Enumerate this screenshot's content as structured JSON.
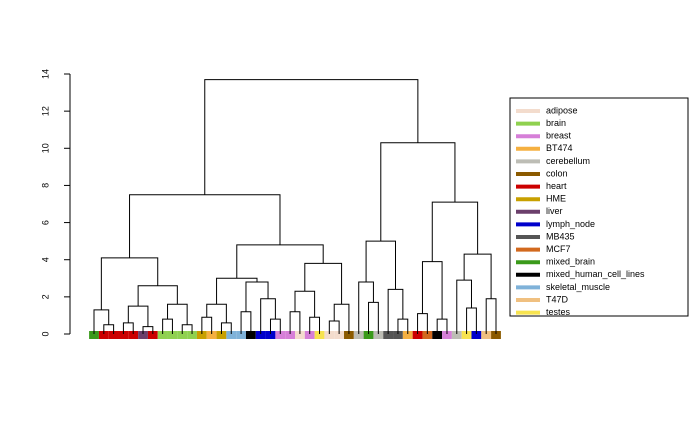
{
  "chart_data": {
    "type": "dendrogram",
    "ylim": [
      0,
      14
    ],
    "yticks": [
      0,
      2,
      4,
      6,
      8,
      10,
      12,
      14
    ],
    "series": [
      {
        "name": "adipose",
        "color": "#f3dccd"
      },
      {
        "name": "brain",
        "color": "#8fd14f"
      },
      {
        "name": "breast",
        "color": "#d67fd8"
      },
      {
        "name": "BT474",
        "color": "#f5b041"
      },
      {
        "name": "cerebellum",
        "color": "#bdbdb5"
      },
      {
        "name": "colon",
        "color": "#8b5a00"
      },
      {
        "name": "heart",
        "color": "#cc0000"
      },
      {
        "name": "HME",
        "color": "#c8a000"
      },
      {
        "name": "liver",
        "color": "#6b3f6b"
      },
      {
        "name": "lymph_node",
        "color": "#0000cc"
      },
      {
        "name": "MB435",
        "color": "#555555"
      },
      {
        "name": "MCF7",
        "color": "#d2691e"
      },
      {
        "name": "mixed_brain",
        "color": "#3a9a1a"
      },
      {
        "name": "mixed_human_cell_lines",
        "color": "#000000"
      },
      {
        "name": "skeletal_muscle",
        "color": "#7fb2d9"
      },
      {
        "name": "T47D",
        "color": "#f0c080"
      },
      {
        "name": "testes",
        "color": "#f7e34f"
      }
    ],
    "tree": {
      "h": 13.7,
      "c": [
        {
          "h": 7.5,
          "c": [
            {
              "h": 4.1,
              "c": [
                {
                  "h": 1.3,
                  "c": [
                    {
                      "group": "mixed_brain"
                    },
                    {
                      "h": 0.5,
                      "c": [
                        {
                          "group": "heart"
                        },
                        {
                          "group": "heart"
                        }
                      ]
                    }
                  ]
                },
                {
                  "h": 2.6,
                  "c": [
                    {
                      "h": 1.5,
                      "c": [
                        {
                          "h": 0.6,
                          "c": [
                            {
                              "group": "heart"
                            },
                            {
                              "group": "heart"
                            }
                          ]
                        },
                        {
                          "h": 0.4,
                          "c": [
                            {
                              "group": "liver"
                            },
                            {
                              "group": "heart"
                            }
                          ]
                        }
                      ]
                    },
                    {
                      "h": 1.6,
                      "c": [
                        {
                          "h": 0.8,
                          "c": [
                            {
                              "group": "brain"
                            },
                            {
                              "group": "brain"
                            }
                          ]
                        },
                        {
                          "h": 0.5,
                          "c": [
                            {
                              "group": "brain"
                            },
                            {
                              "group": "brain"
                            }
                          ]
                        }
                      ]
                    }
                  ]
                }
              ]
            },
            {
              "h": 4.8,
              "c": [
                {
                  "h": 3.0,
                  "c": [
                    {
                      "h": 1.6,
                      "c": [
                        {
                          "h": 0.9,
                          "c": [
                            {
                              "group": "HME"
                            },
                            {
                              "group": "BT474"
                            }
                          ]
                        },
                        {
                          "h": 0.6,
                          "c": [
                            {
                              "group": "HME"
                            },
                            {
                              "group": "skeletal_muscle"
                            }
                          ]
                        }
                      ]
                    },
                    {
                      "h": 2.8,
                      "c": [
                        {
                          "h": 1.2,
                          "c": [
                            {
                              "group": "skeletal_muscle"
                            },
                            {
                              "group": "mixed_human_cell_lines"
                            }
                          ]
                        },
                        {
                          "h": 1.9,
                          "c": [
                            {
                              "group": "lymph_node"
                            },
                            {
                              "h": 0.8,
                              "c": [
                                {
                                  "group": "lymph_node"
                                },
                                {
                                  "group": "breast"
                                }
                              ]
                            }
                          ]
                        }
                      ]
                    }
                  ]
                },
                {
                  "h": 3.8,
                  "c": [
                    {
                      "h": 2.3,
                      "c": [
                        {
                          "h": 1.2,
                          "c": [
                            {
                              "group": "breast"
                            },
                            {
                              "group": "adipose"
                            }
                          ]
                        },
                        {
                          "h": 0.9,
                          "c": [
                            {
                              "group": "breast"
                            },
                            {
                              "group": "testes"
                            }
                          ]
                        }
                      ]
                    },
                    {
                      "h": 1.6,
                      "c": [
                        {
                          "h": 0.7,
                          "c": [
                            {
                              "group": "adipose"
                            },
                            {
                              "group": "adipose"
                            }
                          ]
                        },
                        {
                          "group": "colon"
                        }
                      ]
                    }
                  ]
                }
              ]
            }
          ]
        },
        {
          "h": 10.3,
          "c": [
            {
              "h": 5.0,
              "c": [
                {
                  "h": 2.8,
                  "c": [
                    {
                      "group": "cerebellum"
                    },
                    {
                      "h": 1.7,
                      "c": [
                        {
                          "group": "mixed_brain"
                        },
                        {
                          "group": "cerebellum"
                        }
                      ]
                    }
                  ]
                },
                {
                  "h": 2.4,
                  "c": [
                    {
                      "group": "MB435"
                    },
                    {
                      "h": 0.8,
                      "c": [
                        {
                          "group": "MB435"
                        },
                        {
                          "group": "BT474"
                        }
                      ]
                    }
                  ]
                }
              ]
            },
            {
              "h": 7.1,
              "c": [
                {
                  "h": 3.9,
                  "c": [
                    {
                      "h": 1.1,
                      "c": [
                        {
                          "group": "heart"
                        },
                        {
                          "group": "MCF7"
                        }
                      ]
                    },
                    {
                      "h": 0.8,
                      "c": [
                        {
                          "group": "mixed_human_cell_lines"
                        },
                        {
                          "group": "breast"
                        }
                      ]
                    }
                  ]
                },
                {
                  "h": 4.3,
                  "c": [
                    {
                      "h": 2.9,
                      "c": [
                        {
                          "group": "cerebellum"
                        },
                        {
                          "h": 1.4,
                          "c": [
                            {
                              "group": "testes"
                            },
                            {
                              "group": "lymph_node"
                            }
                          ]
                        }
                      ]
                    },
                    {
                      "h": 1.9,
                      "c": [
                        {
                          "group": "T47D"
                        },
                        {
                          "group": "colon"
                        }
                      ]
                    }
                  ]
                }
              ]
            }
          ]
        }
      ]
    }
  }
}
